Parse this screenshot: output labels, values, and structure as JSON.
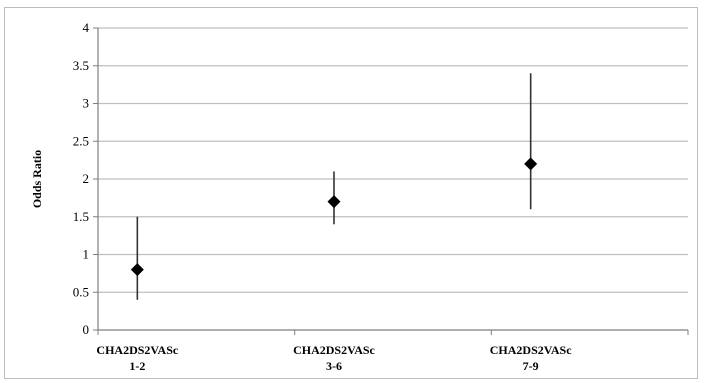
{
  "chart_data": {
    "type": "scatter",
    "title": "",
    "xlabel": "",
    "ylabel": "Odds Ratio",
    "ylim": [
      0,
      4
    ],
    "yticks": [
      "0",
      "0.5",
      "1",
      "1.5",
      "2",
      "2.5",
      "3",
      "3.5",
      "4"
    ],
    "grid": true,
    "categories": [
      {
        "line1": "CHA2DS2VASc",
        "line2": "1-2"
      },
      {
        "line1": "CHA2DS2VASc",
        "line2": "3-6"
      },
      {
        "line1": "CHA2DS2VASc",
        "line2": "7-9"
      }
    ],
    "series": [
      {
        "values": [
          0.8,
          1.7,
          2.2
        ],
        "lower": [
          0.4,
          1.4,
          1.6
        ],
        "upper": [
          1.5,
          2.1,
          3.4
        ]
      }
    ],
    "colors": {
      "marker": "#000000",
      "error_bar": "#333333",
      "grid": "#bfbfbf",
      "axis": "#7f7f7f"
    }
  }
}
